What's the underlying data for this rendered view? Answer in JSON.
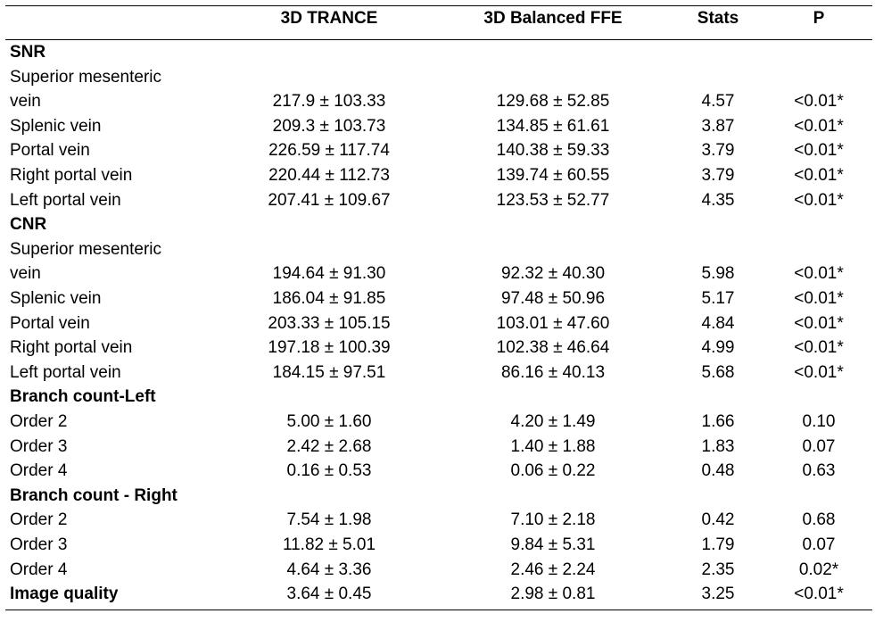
{
  "columns": [
    "",
    "3D TRANCE",
    "3D Balanced FFE",
    "Stats",
    "P"
  ],
  "rows": [
    {
      "type": "section",
      "label": "SNR"
    },
    {
      "type": "label",
      "label": "Superior mesenteric"
    },
    {
      "type": "data",
      "label": "vein",
      "trance": "217.9 ± 103.33",
      "ffe": "129.68 ± 52.85",
      "stats": "4.57",
      "p": "<0.01*"
    },
    {
      "type": "data",
      "label": "Splenic vein",
      "trance": "209.3 ± 103.73",
      "ffe": "134.85 ± 61.61",
      "stats": "3.87",
      "p": "<0.01*"
    },
    {
      "type": "data",
      "label": "Portal vein",
      "trance": "226.59 ± 117.74",
      "ffe": "140.38 ± 59.33",
      "stats": "3.79",
      "p": "<0.01*"
    },
    {
      "type": "data",
      "label": "Right portal vein",
      "trance": "220.44 ± 112.73",
      "ffe": "139.74 ± 60.55",
      "stats": "3.79",
      "p": "<0.01*"
    },
    {
      "type": "data",
      "label": "Left portal vein",
      "trance": "207.41 ± 109.67",
      "ffe": "123.53 ± 52.77",
      "stats": "4.35",
      "p": "<0.01*"
    },
    {
      "type": "section",
      "label": "CNR"
    },
    {
      "type": "label",
      "label": "Superior mesenteric"
    },
    {
      "type": "data",
      "label": "vein",
      "trance": "194.64 ± 91.30",
      "ffe": "92.32 ± 40.30",
      "stats": "5.98",
      "p": "<0.01*"
    },
    {
      "type": "data",
      "label": "Splenic vein",
      "trance": "186.04 ± 91.85",
      "ffe": "97.48 ± 50.96",
      "stats": "5.17",
      "p": "<0.01*"
    },
    {
      "type": "data",
      "label": "Portal vein",
      "trance": "203.33 ± 105.15",
      "ffe": "103.01 ± 47.60",
      "stats": "4.84",
      "p": "<0.01*"
    },
    {
      "type": "data",
      "label": "Right portal vein",
      "trance": "197.18 ± 100.39",
      "ffe": "102.38 ± 46.64",
      "stats": "4.99",
      "p": "<0.01*"
    },
    {
      "type": "data",
      "label": "Left portal vein",
      "trance": "184.15 ± 97.51",
      "ffe": "86.16 ± 40.13",
      "stats": "5.68",
      "p": "<0.01*"
    },
    {
      "type": "section",
      "label": "Branch count-Left"
    },
    {
      "type": "data",
      "label": "Order 2",
      "trance": "5.00 ± 1.60",
      "ffe": "4.20 ± 1.49",
      "stats": "1.66",
      "p": "0.10"
    },
    {
      "type": "data",
      "label": "Order 3",
      "trance": "2.42 ± 2.68",
      "ffe": "1.40 ± 1.88",
      "stats": "1.83",
      "p": "0.07"
    },
    {
      "type": "data",
      "label": "Order 4",
      "trance": "0.16 ± 0.53",
      "ffe": "0.06 ± 0.22",
      "stats": "0.48",
      "p": "0.63"
    },
    {
      "type": "section",
      "label": "Branch count - Right"
    },
    {
      "type": "data",
      "label": "Order 2",
      "trance": "7.54 ± 1.98",
      "ffe": "7.10 ± 2.18",
      "stats": "0.42",
      "p": "0.68"
    },
    {
      "type": "data",
      "label": "Order 3",
      "trance": "11.82 ± 5.01",
      "ffe": "9.84 ± 5.31",
      "stats": "1.79",
      "p": "0.07"
    },
    {
      "type": "data",
      "label": "Order 4",
      "trance": "4.64 ± 3.36",
      "ffe": "2.46 ± 2.24",
      "stats": "2.35",
      "p": "0.02*"
    },
    {
      "type": "section-data",
      "label": "Image quality",
      "trance": "3.64 ± 0.45",
      "ffe": "2.98 ± 0.81",
      "stats": "3.25",
      "p": "<0.01*"
    }
  ]
}
